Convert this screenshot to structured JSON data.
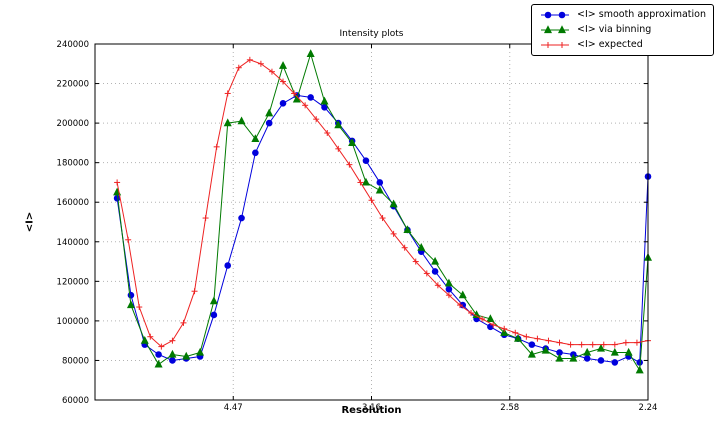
{
  "chart_data": {
    "type": "line",
    "title": "Intensity plots",
    "xlabel": "Resolution",
    "ylabel": "<I>",
    "xlim": [
      0,
      0.2
    ],
    "ylim": [
      60000,
      240000
    ],
    "grid": "dotted",
    "legend_position": "top-right",
    "xticks": {
      "positions": [
        0.05,
        0.1,
        0.15,
        0.2
      ],
      "labels": [
        "4.47",
        "3.16",
        "2.58",
        "2.24"
      ]
    },
    "yticks": [
      60000,
      80000,
      100000,
      120000,
      140000,
      160000,
      180000,
      200000,
      220000,
      240000
    ],
    "series": [
      {
        "name": "<I> smooth approximation",
        "color": "#0000dd",
        "marker": "circle",
        "x": [
          0.008,
          0.013,
          0.018,
          0.023,
          0.028,
          0.033,
          0.038,
          0.043,
          0.048,
          0.053,
          0.058,
          0.063,
          0.068,
          0.073,
          0.078,
          0.083,
          0.088,
          0.093,
          0.098,
          0.103,
          0.108,
          0.113,
          0.118,
          0.123,
          0.128,
          0.133,
          0.138,
          0.143,
          0.148,
          0.153,
          0.158,
          0.163,
          0.168,
          0.173,
          0.178,
          0.183,
          0.188,
          0.193,
          0.197,
          0.2
        ],
        "y": [
          162000,
          113000,
          88000,
          83000,
          80000,
          81000,
          82000,
          103000,
          128000,
          152000,
          185000,
          200000,
          210000,
          214000,
          213000,
          208000,
          200000,
          191000,
          181000,
          170000,
          158000,
          146000,
          135000,
          125000,
          116000,
          108000,
          101000,
          97000,
          93000,
          91000,
          88000,
          86000,
          84000,
          83000,
          81000,
          80000,
          79000,
          82000,
          79000,
          173000
        ]
      },
      {
        "name": "<I> via binning",
        "color": "#007a00",
        "marker": "triangle",
        "x": [
          0.008,
          0.013,
          0.018,
          0.023,
          0.028,
          0.033,
          0.038,
          0.043,
          0.048,
          0.053,
          0.058,
          0.063,
          0.068,
          0.073,
          0.078,
          0.083,
          0.088,
          0.093,
          0.098,
          0.103,
          0.108,
          0.113,
          0.118,
          0.123,
          0.128,
          0.133,
          0.138,
          0.143,
          0.148,
          0.153,
          0.158,
          0.163,
          0.168,
          0.173,
          0.178,
          0.183,
          0.188,
          0.193,
          0.197,
          0.2
        ],
        "y": [
          165000,
          108000,
          90000,
          78000,
          83000,
          82000,
          84000,
          110000,
          200000,
          201000,
          192000,
          205000,
          229000,
          212000,
          235000,
          211000,
          199000,
          190000,
          170000,
          166000,
          159000,
          146000,
          137000,
          130000,
          119000,
          113000,
          103000,
          101000,
          94000,
          91000,
          83000,
          85000,
          81000,
          81000,
          84000,
          86000,
          84000,
          84000,
          75000,
          132000
        ]
      },
      {
        "name": "<I> expected",
        "color": "#ee2222",
        "marker": "plus",
        "x": [
          0.008,
          0.012,
          0.016,
          0.02,
          0.024,
          0.028,
          0.032,
          0.036,
          0.04,
          0.044,
          0.048,
          0.052,
          0.056,
          0.06,
          0.064,
          0.068,
          0.072,
          0.076,
          0.08,
          0.084,
          0.088,
          0.092,
          0.096,
          0.1,
          0.104,
          0.108,
          0.112,
          0.116,
          0.12,
          0.124,
          0.128,
          0.132,
          0.136,
          0.14,
          0.144,
          0.148,
          0.152,
          0.156,
          0.16,
          0.164,
          0.168,
          0.172,
          0.176,
          0.18,
          0.184,
          0.188,
          0.192,
          0.196,
          0.2
        ],
        "y": [
          170000,
          141000,
          107000,
          92000,
          87000,
          90000,
          99000,
          115000,
          152000,
          188000,
          215000,
          228000,
          232000,
          230000,
          226000,
          221000,
          215000,
          209000,
          202000,
          195000,
          187000,
          179000,
          170000,
          161000,
          152000,
          144000,
          137000,
          130000,
          124000,
          118000,
          113000,
          108000,
          104000,
          101000,
          98000,
          96000,
          94000,
          92000,
          91000,
          90000,
          89000,
          88000,
          88000,
          88000,
          88000,
          88000,
          89000,
          89000,
          90000
        ]
      }
    ]
  }
}
